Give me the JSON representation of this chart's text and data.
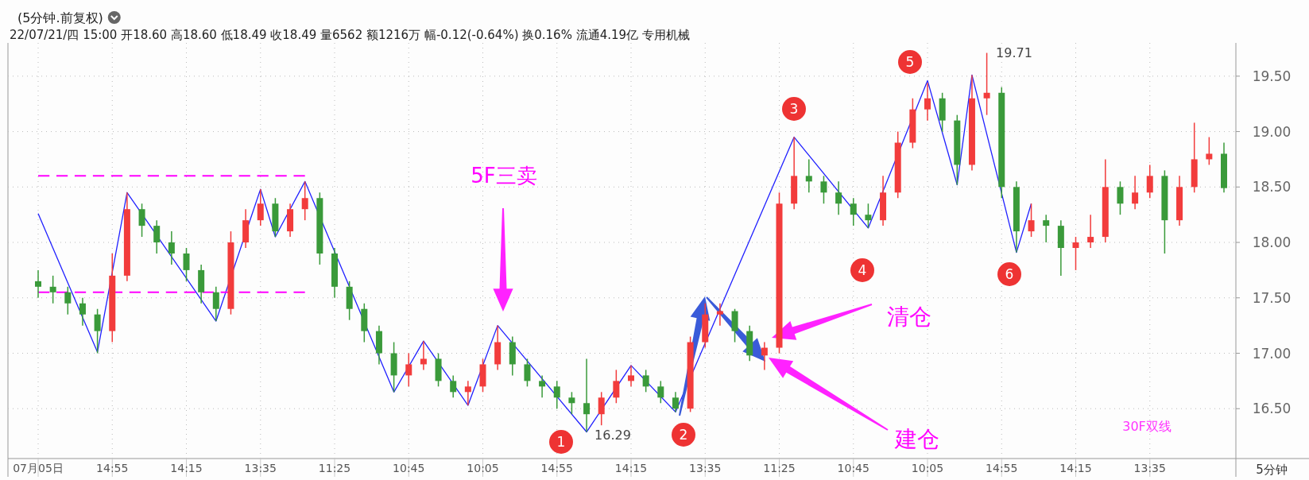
{
  "chart_data": {
    "type": "candlestick",
    "title": "(5分钟.前复权)",
    "subtitle": "22/07/21/四 15:00 开18.60 高18.60 低18.49 收18.49 量6562 额1216万 幅-0.12(-0.64%) 换0.16% 流通4.19亿 专用机械",
    "categories": [
      "07月05日",
      null,
      null,
      null,
      null,
      "14:55",
      null,
      null,
      null,
      null,
      "14:15",
      null,
      null,
      null,
      null,
      "13:35",
      null,
      null,
      null,
      null,
      "11:25",
      null,
      null,
      null,
      null,
      "10:45",
      null,
      null,
      null,
      null,
      "10:05",
      null,
      null,
      null,
      null,
      "14:55",
      null,
      null,
      null,
      null,
      "14:15",
      null,
      null,
      null,
      null,
      "13:35",
      null,
      null,
      null,
      null,
      "11:25",
      null,
      null,
      null,
      null,
      "10:45",
      null,
      null,
      null,
      null,
      "10:05",
      null,
      null,
      null,
      null,
      "14:55",
      null,
      null,
      null,
      null,
      "14:15",
      null,
      null,
      null,
      null,
      "13:35",
      null,
      null,
      null,
      null,
      null
    ],
    "ohlc": [
      [
        17.65,
        17.75,
        17.5,
        17.6
      ],
      [
        17.6,
        17.7,
        17.45,
        17.55
      ],
      [
        17.55,
        17.6,
        17.35,
        17.45
      ],
      [
        17.45,
        17.5,
        17.25,
        17.35
      ],
      [
        17.35,
        17.4,
        17.0,
        17.2
      ],
      [
        17.2,
        17.9,
        17.1,
        17.7
      ],
      [
        17.7,
        18.45,
        17.65,
        18.3
      ],
      [
        18.3,
        18.35,
        18.05,
        18.15
      ],
      [
        18.15,
        18.2,
        17.9,
        18.0
      ],
      [
        18.0,
        18.1,
        17.8,
        17.9
      ],
      [
        17.9,
        17.95,
        17.65,
        17.75
      ],
      [
        17.75,
        17.8,
        17.45,
        17.55
      ],
      [
        17.55,
        17.6,
        17.29,
        17.4
      ],
      [
        17.4,
        18.1,
        17.35,
        18.0
      ],
      [
        18.0,
        18.3,
        17.95,
        18.2
      ],
      [
        18.2,
        18.48,
        18.15,
        18.35
      ],
      [
        18.35,
        18.4,
        18.05,
        18.1
      ],
      [
        18.1,
        18.35,
        18.05,
        18.3
      ],
      [
        18.3,
        18.55,
        18.2,
        18.4
      ],
      [
        18.4,
        18.45,
        17.8,
        17.9
      ],
      [
        17.9,
        17.95,
        17.5,
        17.6
      ],
      [
        17.6,
        17.65,
        17.3,
        17.4
      ],
      [
        17.4,
        17.45,
        17.1,
        17.2
      ],
      [
        17.2,
        17.25,
        16.9,
        17.0
      ],
      [
        17.0,
        17.1,
        16.65,
        16.8
      ],
      [
        16.8,
        17.0,
        16.7,
        16.9
      ],
      [
        16.9,
        17.11,
        16.85,
        16.95
      ],
      [
        16.95,
        17.0,
        16.7,
        16.75
      ],
      [
        16.75,
        16.8,
        16.6,
        16.65
      ],
      [
        16.65,
        16.75,
        16.53,
        16.7
      ],
      [
        16.7,
        16.95,
        16.65,
        16.9
      ],
      [
        16.9,
        17.25,
        16.85,
        17.1
      ],
      [
        17.1,
        17.15,
        16.8,
        16.9
      ],
      [
        16.9,
        16.95,
        16.7,
        16.75
      ],
      [
        16.75,
        16.8,
        16.6,
        16.7
      ],
      [
        16.7,
        16.75,
        16.5,
        16.6
      ],
      [
        16.6,
        16.65,
        16.45,
        16.55
      ],
      [
        16.55,
        16.95,
        16.29,
        16.45
      ],
      [
        16.45,
        16.65,
        16.35,
        16.6
      ],
      [
        16.6,
        16.85,
        16.55,
        16.75
      ],
      [
        16.75,
        16.89,
        16.7,
        16.8
      ],
      [
        16.8,
        16.85,
        16.65,
        16.7
      ],
      [
        16.7,
        16.75,
        16.55,
        16.6
      ],
      [
        16.6,
        16.65,
        16.47,
        16.5
      ],
      [
        16.5,
        17.15,
        16.47,
        17.1
      ],
      [
        17.1,
        17.45,
        17.05,
        17.35
      ],
      [
        17.35,
        17.45,
        17.25,
        17.38
      ],
      [
        17.38,
        17.4,
        17.1,
        17.2
      ],
      [
        17.2,
        17.25,
        16.93,
        16.98
      ],
      [
        16.98,
        17.1,
        16.85,
        17.05
      ],
      [
        17.05,
        18.45,
        17.0,
        18.35
      ],
      [
        18.35,
        18.95,
        18.3,
        18.6
      ],
      [
        18.6,
        18.75,
        18.45,
        18.55
      ],
      [
        18.55,
        18.6,
        18.35,
        18.45
      ],
      [
        18.45,
        18.55,
        18.25,
        18.35
      ],
      [
        18.35,
        18.4,
        18.15,
        18.25
      ],
      [
        18.25,
        18.35,
        18.13,
        18.2
      ],
      [
        18.2,
        18.6,
        18.15,
        18.45
      ],
      [
        18.45,
        19.0,
        18.4,
        18.9
      ],
      [
        18.9,
        19.3,
        18.85,
        19.2
      ],
      [
        19.2,
        19.44,
        19.1,
        19.3
      ],
      [
        19.3,
        19.35,
        19.0,
        19.1
      ],
      [
        19.1,
        19.15,
        18.52,
        18.7
      ],
      [
        18.7,
        19.51,
        18.65,
        19.3
      ],
      [
        19.3,
        19.71,
        19.15,
        19.35
      ],
      [
        19.35,
        19.4,
        18.4,
        18.5
      ],
      [
        18.5,
        18.55,
        17.91,
        18.1
      ],
      [
        18.1,
        18.35,
        18.05,
        18.2
      ],
      [
        18.2,
        18.25,
        18.0,
        18.15
      ],
      [
        18.15,
        18.2,
        17.7,
        17.95
      ],
      [
        17.95,
        18.05,
        17.75,
        18.0
      ],
      [
        18.0,
        18.25,
        17.95,
        18.05
      ],
      [
        18.05,
        18.75,
        18.0,
        18.5
      ],
      [
        18.5,
        18.55,
        18.25,
        18.35
      ],
      [
        18.35,
        18.6,
        18.3,
        18.45
      ],
      [
        18.45,
        18.7,
        18.4,
        18.6
      ],
      [
        18.6,
        18.65,
        17.9,
        18.2
      ],
      [
        18.2,
        18.6,
        18.15,
        18.5
      ],
      [
        18.5,
        19.08,
        18.45,
        18.75
      ],
      [
        18.75,
        18.95,
        18.7,
        18.8
      ],
      [
        18.8,
        18.9,
        18.45,
        18.49
      ]
    ],
    "colors": [
      "#3a9a3a",
      "#3a9a3a",
      "#3a9a3a",
      "#3a9a3a",
      "#3a9a3a",
      "#f23c3c",
      "#f23c3c",
      "#3a9a3a",
      "#3a9a3a",
      "#3a9a3a",
      "#3a9a3a",
      "#3a9a3a",
      "#3a9a3a",
      "#f23c3c",
      "#f23c3c",
      "#f23c3c",
      "#3a9a3a",
      "#f23c3c",
      "#f23c3c",
      "#3a9a3a",
      "#3a9a3a",
      "#3a9a3a",
      "#3a9a3a",
      "#3a9a3a",
      "#3a9a3a",
      "#f23c3c",
      "#f23c3c",
      "#3a9a3a",
      "#3a9a3a",
      "#f23c3c",
      "#f23c3c",
      "#f23c3c",
      "#3a9a3a",
      "#3a9a3a",
      "#3a9a3a",
      "#3a9a3a",
      "#3a9a3a",
      "#3a9a3a",
      "#f23c3c",
      "#f23c3c",
      "#f23c3c",
      "#3a9a3a",
      "#3a9a3a",
      "#3a9a3a",
      "#f23c3c",
      "#f23c3c",
      "#f23c3c",
      "#3a9a3a",
      "#3a9a3a",
      "#f23c3c",
      "#f23c3c",
      "#f23c3c",
      "#3a9a3a",
      "#3a9a3a",
      "#3a9a3a",
      "#3a9a3a",
      "#3a9a3a",
      "#f23c3c",
      "#f23c3c",
      "#f23c3c",
      "#f23c3c",
      "#3a9a3a",
      "#3a9a3a",
      "#f23c3c",
      "#f23c3c",
      "#3a9a3a",
      "#3a9a3a",
      "#f23c3c",
      "#3a9a3a",
      "#3a9a3a",
      "#f23c3c",
      "#f23c3c",
      "#f23c3c",
      "#3a9a3a",
      "#f23c3c",
      "#f23c3c",
      "#3a9a3a",
      "#f23c3c",
      "#f23c3c",
      "#f23c3c",
      "#3a9a3a"
    ],
    "series": [
      {
        "type": "line",
        "color": "#2020ff",
        "line_style": "solid",
        "values": [
          18.26,
          null,
          null,
          null,
          17.01,
          null,
          18.45,
          null,
          null,
          null,
          null,
          null,
          17.29,
          null,
          null,
          18.48,
          18.05,
          null,
          18.55,
          null,
          null,
          null,
          null,
          null,
          16.65,
          null,
          17.11,
          null,
          null,
          16.53,
          null,
          17.25,
          null,
          null,
          null,
          null,
          null,
          16.29,
          null,
          null,
          16.89,
          null,
          null,
          16.47,
          null,
          null,
          null,
          null,
          null,
          null,
          null,
          18.95,
          null,
          null,
          null,
          null,
          18.13,
          null,
          null,
          null,
          19.46,
          null,
          18.52,
          19.51,
          null,
          null,
          17.91,
          18.35,
          null,
          null,
          null,
          null,
          null,
          null,
          null,
          null,
          null,
          null,
          null,
          null,
          null
        ]
      },
      {
        "type": "line",
        "color": "#ff00ff",
        "line_style": "dashed",
        "values": [
          18.6,
          18.6,
          18.6,
          18.6,
          18.6,
          18.6,
          18.6,
          18.6,
          18.6,
          18.6,
          18.6,
          18.6,
          18.6,
          18.6,
          18.6,
          18.6,
          18.6,
          18.6,
          18.6,
          null,
          null,
          null,
          null,
          null,
          null,
          null,
          null,
          null,
          null,
          null,
          null,
          null,
          null,
          null,
          null,
          null,
          null,
          null,
          null,
          null,
          null,
          null,
          null,
          null,
          null,
          null,
          null,
          null,
          null,
          null,
          null,
          null,
          null,
          null,
          null,
          null,
          null,
          null,
          null,
          null,
          null,
          null,
          null,
          null,
          null,
          null,
          null,
          null,
          null,
          null,
          null,
          null,
          null,
          null,
          null,
          null,
          null,
          null,
          null,
          null,
          null
        ]
      },
      {
        "type": "line",
        "color": "#ff00ff",
        "line_style": "dashed",
        "values": [
          17.55,
          17.55,
          17.55,
          17.55,
          17.55,
          null,
          17.55,
          17.55,
          17.55,
          17.55,
          17.55,
          17.55,
          null,
          null,
          17.55,
          17.55,
          17.55,
          17.55,
          17.55,
          null,
          null,
          null,
          null,
          null,
          null,
          null,
          null,
          null,
          null,
          null,
          null,
          null,
          null,
          null,
          null,
          null,
          null,
          null,
          null,
          null,
          null,
          null,
          null,
          null,
          null,
          null,
          null,
          null,
          null,
          null,
          null,
          null,
          null,
          null,
          null,
          null,
          null,
          null,
          null,
          null,
          null,
          null,
          null,
          null,
          null,
          null,
          null,
          null,
          null,
          null,
          null,
          null,
          null,
          null,
          null,
          null,
          null,
          null,
          null,
          null,
          null
        ]
      }
    ],
    "ylim": [
      16.05,
      19.8
    ],
    "yticks": [
      {
        "value": 16.5,
        "label": "16.50"
      },
      {
        "value": 17,
        "label": "17.00"
      },
      {
        "value": 17.5,
        "label": "17.50"
      },
      {
        "value": 18,
        "label": "18.00"
      },
      {
        "value": 18.5,
        "label": "18.50"
      },
      {
        "value": 19,
        "label": "19.00"
      },
      {
        "value": 19.5,
        "label": "19.50"
      }
    ],
    "grid": true,
    "annotations": [
      "5F三卖",
      "清仓",
      "建仓",
      "30F双线",
      "16.29",
      "19.71",
      "1",
      "2",
      "3",
      "4",
      "5",
      "6",
      "5分钟"
    ]
  }
}
